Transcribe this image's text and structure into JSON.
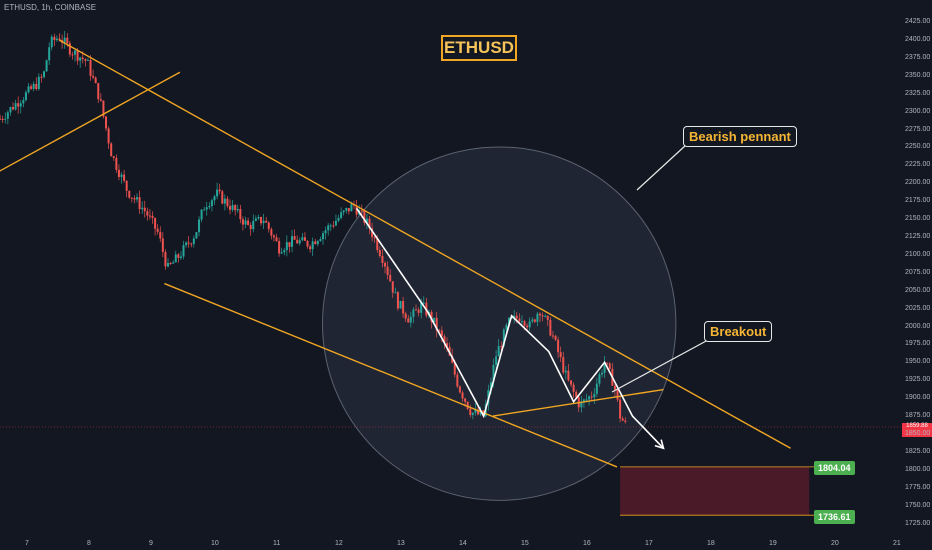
{
  "header": {
    "ticker": "ETHUSD, 1h, COINBASE"
  },
  "title": "ETHUSD",
  "annotations": {
    "pennant_label": "Bearish pennant",
    "breakout_label": "Breakout",
    "target_upper": "1804.04",
    "target_lower": "1736.61",
    "current_price": "1859.88"
  },
  "colors": {
    "background": "#131722",
    "bull": "#26a69a",
    "bear": "#ef5350",
    "trendline": "#f0a623",
    "zone": "#4a1a29",
    "circle": "#2a3140",
    "current_price": "#f23645",
    "target_tag": "#4caf50"
  },
  "chart_data": {
    "type": "candlestick",
    "symbol": "ETHUSD",
    "interval": "1h",
    "exchange": "COINBASE",
    "x_ticks": [
      "7",
      "8",
      "9",
      "10",
      "11",
      "12",
      "13",
      "14",
      "15",
      "16",
      "17",
      "18",
      "19",
      "20",
      "21"
    ],
    "y_ticks": [
      1725,
      1750,
      1775,
      1800,
      1825,
      1850,
      1875,
      1900,
      1925,
      1950,
      1975,
      2000,
      2025,
      2050,
      2075,
      2100,
      2125,
      2150,
      2175,
      2200,
      2225,
      2250,
      2275,
      2300,
      2325,
      2350,
      2375,
      2400,
      2425
    ],
    "ylim": [
      1715,
      2445
    ],
    "xlim": [
      6.55,
      21.05
    ],
    "price_path": [
      [
        6.55,
        2290
      ],
      [
        6.85,
        2315
      ],
      [
        7.1,
        2335
      ],
      [
        7.25,
        2350
      ],
      [
        7.35,
        2395
      ],
      [
        7.5,
        2405
      ],
      [
        7.7,
        2385
      ],
      [
        7.95,
        2370
      ],
      [
        8.15,
        2320
      ],
      [
        8.35,
        2240
      ],
      [
        8.6,
        2190
      ],
      [
        8.9,
        2160
      ],
      [
        9.1,
        2130
      ],
      [
        9.25,
        2080
      ],
      [
        9.45,
        2100
      ],
      [
        9.7,
        2130
      ],
      [
        9.85,
        2170
      ],
      [
        10.05,
        2185
      ],
      [
        10.3,
        2165
      ],
      [
        10.55,
        2140
      ],
      [
        10.8,
        2150
      ],
      [
        11.05,
        2110
      ],
      [
        11.3,
        2120
      ],
      [
        11.55,
        2115
      ],
      [
        11.8,
        2135
      ],
      [
        12.05,
        2155
      ],
      [
        12.25,
        2170
      ],
      [
        12.5,
        2140
      ],
      [
        12.75,
        2090
      ],
      [
        12.95,
        2035
      ],
      [
        13.15,
        2010
      ],
      [
        13.35,
        2030
      ],
      [
        13.55,
        2005
      ],
      [
        13.75,
        1970
      ],
      [
        13.95,
        1915
      ],
      [
        14.15,
        1880
      ],
      [
        14.35,
        1875
      ],
      [
        14.55,
        1960
      ],
      [
        14.75,
        2005
      ],
      [
        14.95,
        2015
      ],
      [
        15.1,
        2000
      ],
      [
        15.25,
        2025
      ],
      [
        15.45,
        1990
      ],
      [
        15.7,
        1925
      ],
      [
        15.9,
        1890
      ],
      [
        16.1,
        1905
      ],
      [
        16.3,
        1950
      ],
      [
        16.45,
        1920
      ],
      [
        16.55,
        1875
      ],
      [
        16.65,
        1860
      ]
    ],
    "trendlines": [
      {
        "name": "upper",
        "from": [
          7.5,
          2400
        ],
        "to": [
          19.3,
          1830
        ]
      },
      {
        "name": "lower",
        "from": [
          9.2,
          2060
        ],
        "to": [
          16.5,
          1804
        ]
      },
      {
        "name": "support-rise",
        "from": [
          6.5,
          2215
        ],
        "to": [
          9.45,
          2355
        ]
      },
      {
        "name": "pennant-base",
        "from": [
          14.5,
          1875
        ],
        "to": [
          17.25,
          1912
        ]
      }
    ],
    "swing_path": [
      [
        12.3,
        2165
      ],
      [
        13.45,
        2020
      ],
      [
        14.35,
        1875
      ],
      [
        14.8,
        2015
      ],
      [
        15.4,
        1965
      ],
      [
        15.8,
        1895
      ],
      [
        16.3,
        1950
      ],
      [
        16.75,
        1875
      ],
      [
        17.25,
        1830
      ]
    ],
    "target_zone": {
      "from_x": 16.55,
      "to_x": 19.6,
      "top": 1804.04,
      "bottom": 1736.61
    },
    "circle": {
      "center": [
        14.6,
        2004
      ],
      "radius_days": 2.85
    },
    "current_price": 1859.88
  }
}
